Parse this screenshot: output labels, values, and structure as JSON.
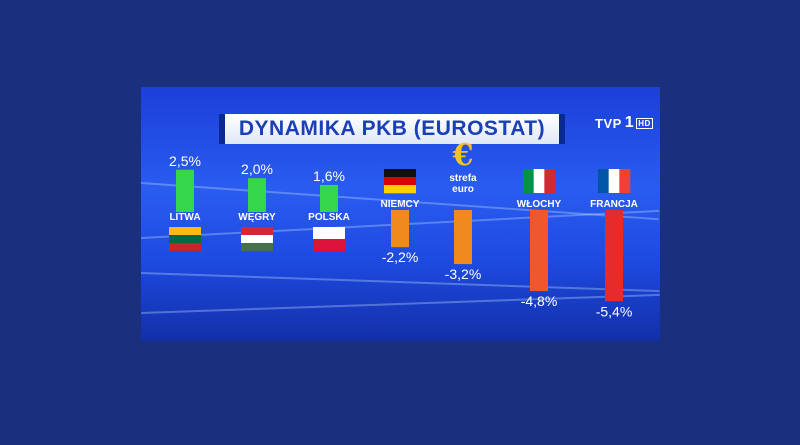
{
  "title": "DYNAMIKA PKB  (EUROSTAT)",
  "channel_logo": {
    "name": "TVP",
    "number": "1",
    "hd": "HD"
  },
  "colors": {
    "background": "#1a2f7d",
    "positive": "#35d64a",
    "negative_mid": "#f08a1f",
    "negative_strong": "#f0572a",
    "negative_max": "#e52b2b"
  },
  "chart_data": {
    "type": "bar",
    "title": "DYNAMIKA PKB  (EUROSTAT)",
    "xlabel": "",
    "ylabel": "",
    "grid": false,
    "legend": "none",
    "categories": [
      "LITWA",
      "WĘGRY",
      "POLSKA",
      "NIEMCY",
      "strefa euro",
      "WŁOCHY",
      "FRANCJA"
    ],
    "values": [
      2.5,
      2.0,
      1.6,
      -2.2,
      -3.2,
      -4.8,
      -5.4
    ],
    "value_labels": [
      "2,5%",
      "2,0%",
      "1,6%",
      "-2,2%",
      "-3,2%",
      "-4,8%",
      "-5,4%"
    ],
    "icons": [
      "flag-lithuania",
      "flag-hungary",
      "flag-poland",
      "flag-germany",
      "euro-symbol",
      "flag-italy",
      "flag-france"
    ],
    "euro_symbol": "€",
    "ylim": [
      -5.4,
      2.5
    ]
  }
}
